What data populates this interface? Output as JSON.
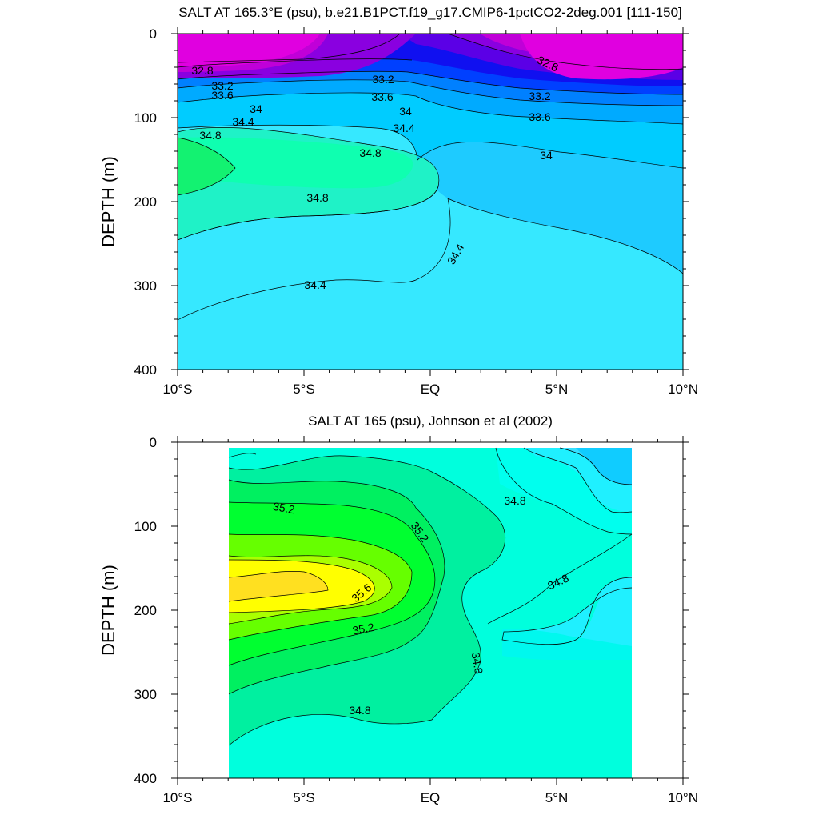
{
  "chart_data": [
    {
      "type": "contour",
      "title": "SALT AT 165.3°E (psu), b.e21.B1PCT.f19_g17.CMIP6-1pctCO2-2deg.001 [111-150]",
      "ylabel": "DEPTH (m)",
      "xlabel": "",
      "x_ticks": [
        "10°S",
        "5°S",
        "EQ",
        "5°N",
        "10°N"
      ],
      "x_tick_values": [
        -10,
        -5,
        0,
        5,
        10
      ],
      "y_ticks": [
        "0",
        "100",
        "200",
        "300",
        "400"
      ],
      "y_tick_values": [
        0,
        100,
        200,
        300,
        400
      ],
      "xlim": [
        -10,
        10
      ],
      "ylim": [
        400,
        0
      ],
      "y_reversed": true,
      "data_extent": {
        "lat": [
          -10,
          10
        ],
        "depth": [
          5,
          400
        ]
      },
      "contour_labels": [
        {
          "text": "32.8",
          "lat": -9.5,
          "depth": 42
        },
        {
          "text": "32.8",
          "lat": 4.5,
          "depth": 35
        },
        {
          "text": "33.2",
          "lat": -8.2,
          "depth": 60
        },
        {
          "text": "33.2",
          "lat": -2.0,
          "depth": 52
        },
        {
          "text": "33.2",
          "lat": 4.5,
          "depth": 70
        },
        {
          "text": "33.6",
          "lat": -8.2,
          "depth": 72
        },
        {
          "text": "33.6",
          "lat": -2.0,
          "depth": 72
        },
        {
          "text": "33.6",
          "lat": 4.5,
          "depth": 95
        },
        {
          "text": "34",
          "lat": -6.4,
          "depth": 85
        },
        {
          "text": "34",
          "lat": -1.0,
          "depth": 88
        },
        {
          "text": "34",
          "lat": 4.6,
          "depth": 140
        },
        {
          "text": "34.4",
          "lat": -7.3,
          "depth": 100
        },
        {
          "text": "34.4",
          "lat": -1.2,
          "depth": 108
        },
        {
          "text": "34.4",
          "lat": 1.0,
          "depth": 262
        },
        {
          "text": "34.4",
          "lat": -4.6,
          "depth": 290
        },
        {
          "text": "34.8",
          "lat": -9.0,
          "depth": 115
        },
        {
          "text": "34.8",
          "lat": -2.4,
          "depth": 138
        },
        {
          "text": "34.8",
          "lat": -4.6,
          "depth": 195
        }
      ]
    },
    {
      "type": "contour",
      "title": "SALT AT 165 (psu), Johnson et al (2002)",
      "ylabel": "DEPTH (m)",
      "xlabel": "",
      "x_ticks": [
        "10°S",
        "5°S",
        "EQ",
        "5°N",
        "10°N"
      ],
      "x_tick_values": [
        -10,
        -5,
        0,
        5,
        10
      ],
      "y_ticks": [
        "0",
        "100",
        "200",
        "300",
        "400"
      ],
      "y_tick_values": [
        0,
        100,
        200,
        300,
        400
      ],
      "xlim": [
        -10,
        10
      ],
      "ylim": [
        400,
        0
      ],
      "y_reversed": true,
      "data_extent": {
        "lat": [
          -8,
          8
        ],
        "depth": [
          5,
          400
        ]
      },
      "contour_labels": [
        {
          "text": "35.2",
          "lat": -6.2,
          "depth": 78
        },
        {
          "text": "35.2",
          "lat": -0.6,
          "depth": 100
        },
        {
          "text": "35.6",
          "lat": -2.7,
          "depth": 178
        },
        {
          "text": "35.2",
          "lat": -2.7,
          "depth": 220
        },
        {
          "text": "34.8",
          "lat": 3.4,
          "depth": 65
        },
        {
          "text": "34.8",
          "lat": 5.3,
          "depth": 160
        },
        {
          "text": "34.8",
          "lat": 1.7,
          "depth": 260
        },
        {
          "text": "34.8",
          "lat": -2.8,
          "depth": 315
        }
      ]
    }
  ]
}
